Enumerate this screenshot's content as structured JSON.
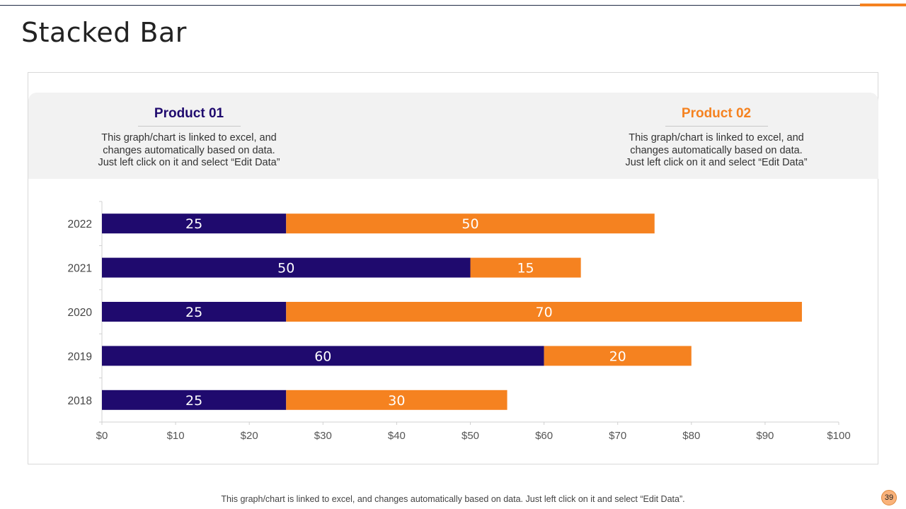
{
  "page": {
    "title": "Stacked Bar",
    "page_number": "39",
    "footnote": "This graph/chart is linked to excel, and changes automatically based on data. Just left click on it and select “Edit Data”.",
    "colors": {
      "accent": "#f58220",
      "product1": "#1f0a6e",
      "product2": "#f58220"
    }
  },
  "products": [
    {
      "name": "Product 01",
      "description": "This graph/chart is linked to excel, and\nchanges automatically based on data.\nJust left click on it and select “Edit Data”"
    },
    {
      "name": "Product 02",
      "description": "This graph/chart is linked to excel, and\nchanges automatically based on data.\nJust left click on it and select “Edit Data”"
    }
  ],
  "chart_data": {
    "type": "bar",
    "orientation": "horizontal",
    "stacked": true,
    "title": "",
    "xlabel": "",
    "ylabel": "",
    "categories": [
      "2022",
      "2021",
      "2020",
      "2019",
      "2018"
    ],
    "series": [
      {
        "name": "Product 01",
        "color": "#1f0a6e",
        "values": [
          25,
          50,
          25,
          60,
          25
        ]
      },
      {
        "name": "Product 02",
        "color": "#f58220",
        "values": [
          50,
          15,
          70,
          20,
          30
        ]
      }
    ],
    "xlim": [
      0,
      100
    ],
    "xticks": [
      0,
      10,
      20,
      30,
      40,
      50,
      60,
      70,
      80,
      90,
      100
    ],
    "xtick_labels": [
      "$0",
      "$10",
      "$20",
      "$30",
      "$40",
      "$50",
      "$60",
      "$70",
      "$80",
      "$90",
      "$100"
    ],
    "grid": false,
    "legend": "none"
  }
}
